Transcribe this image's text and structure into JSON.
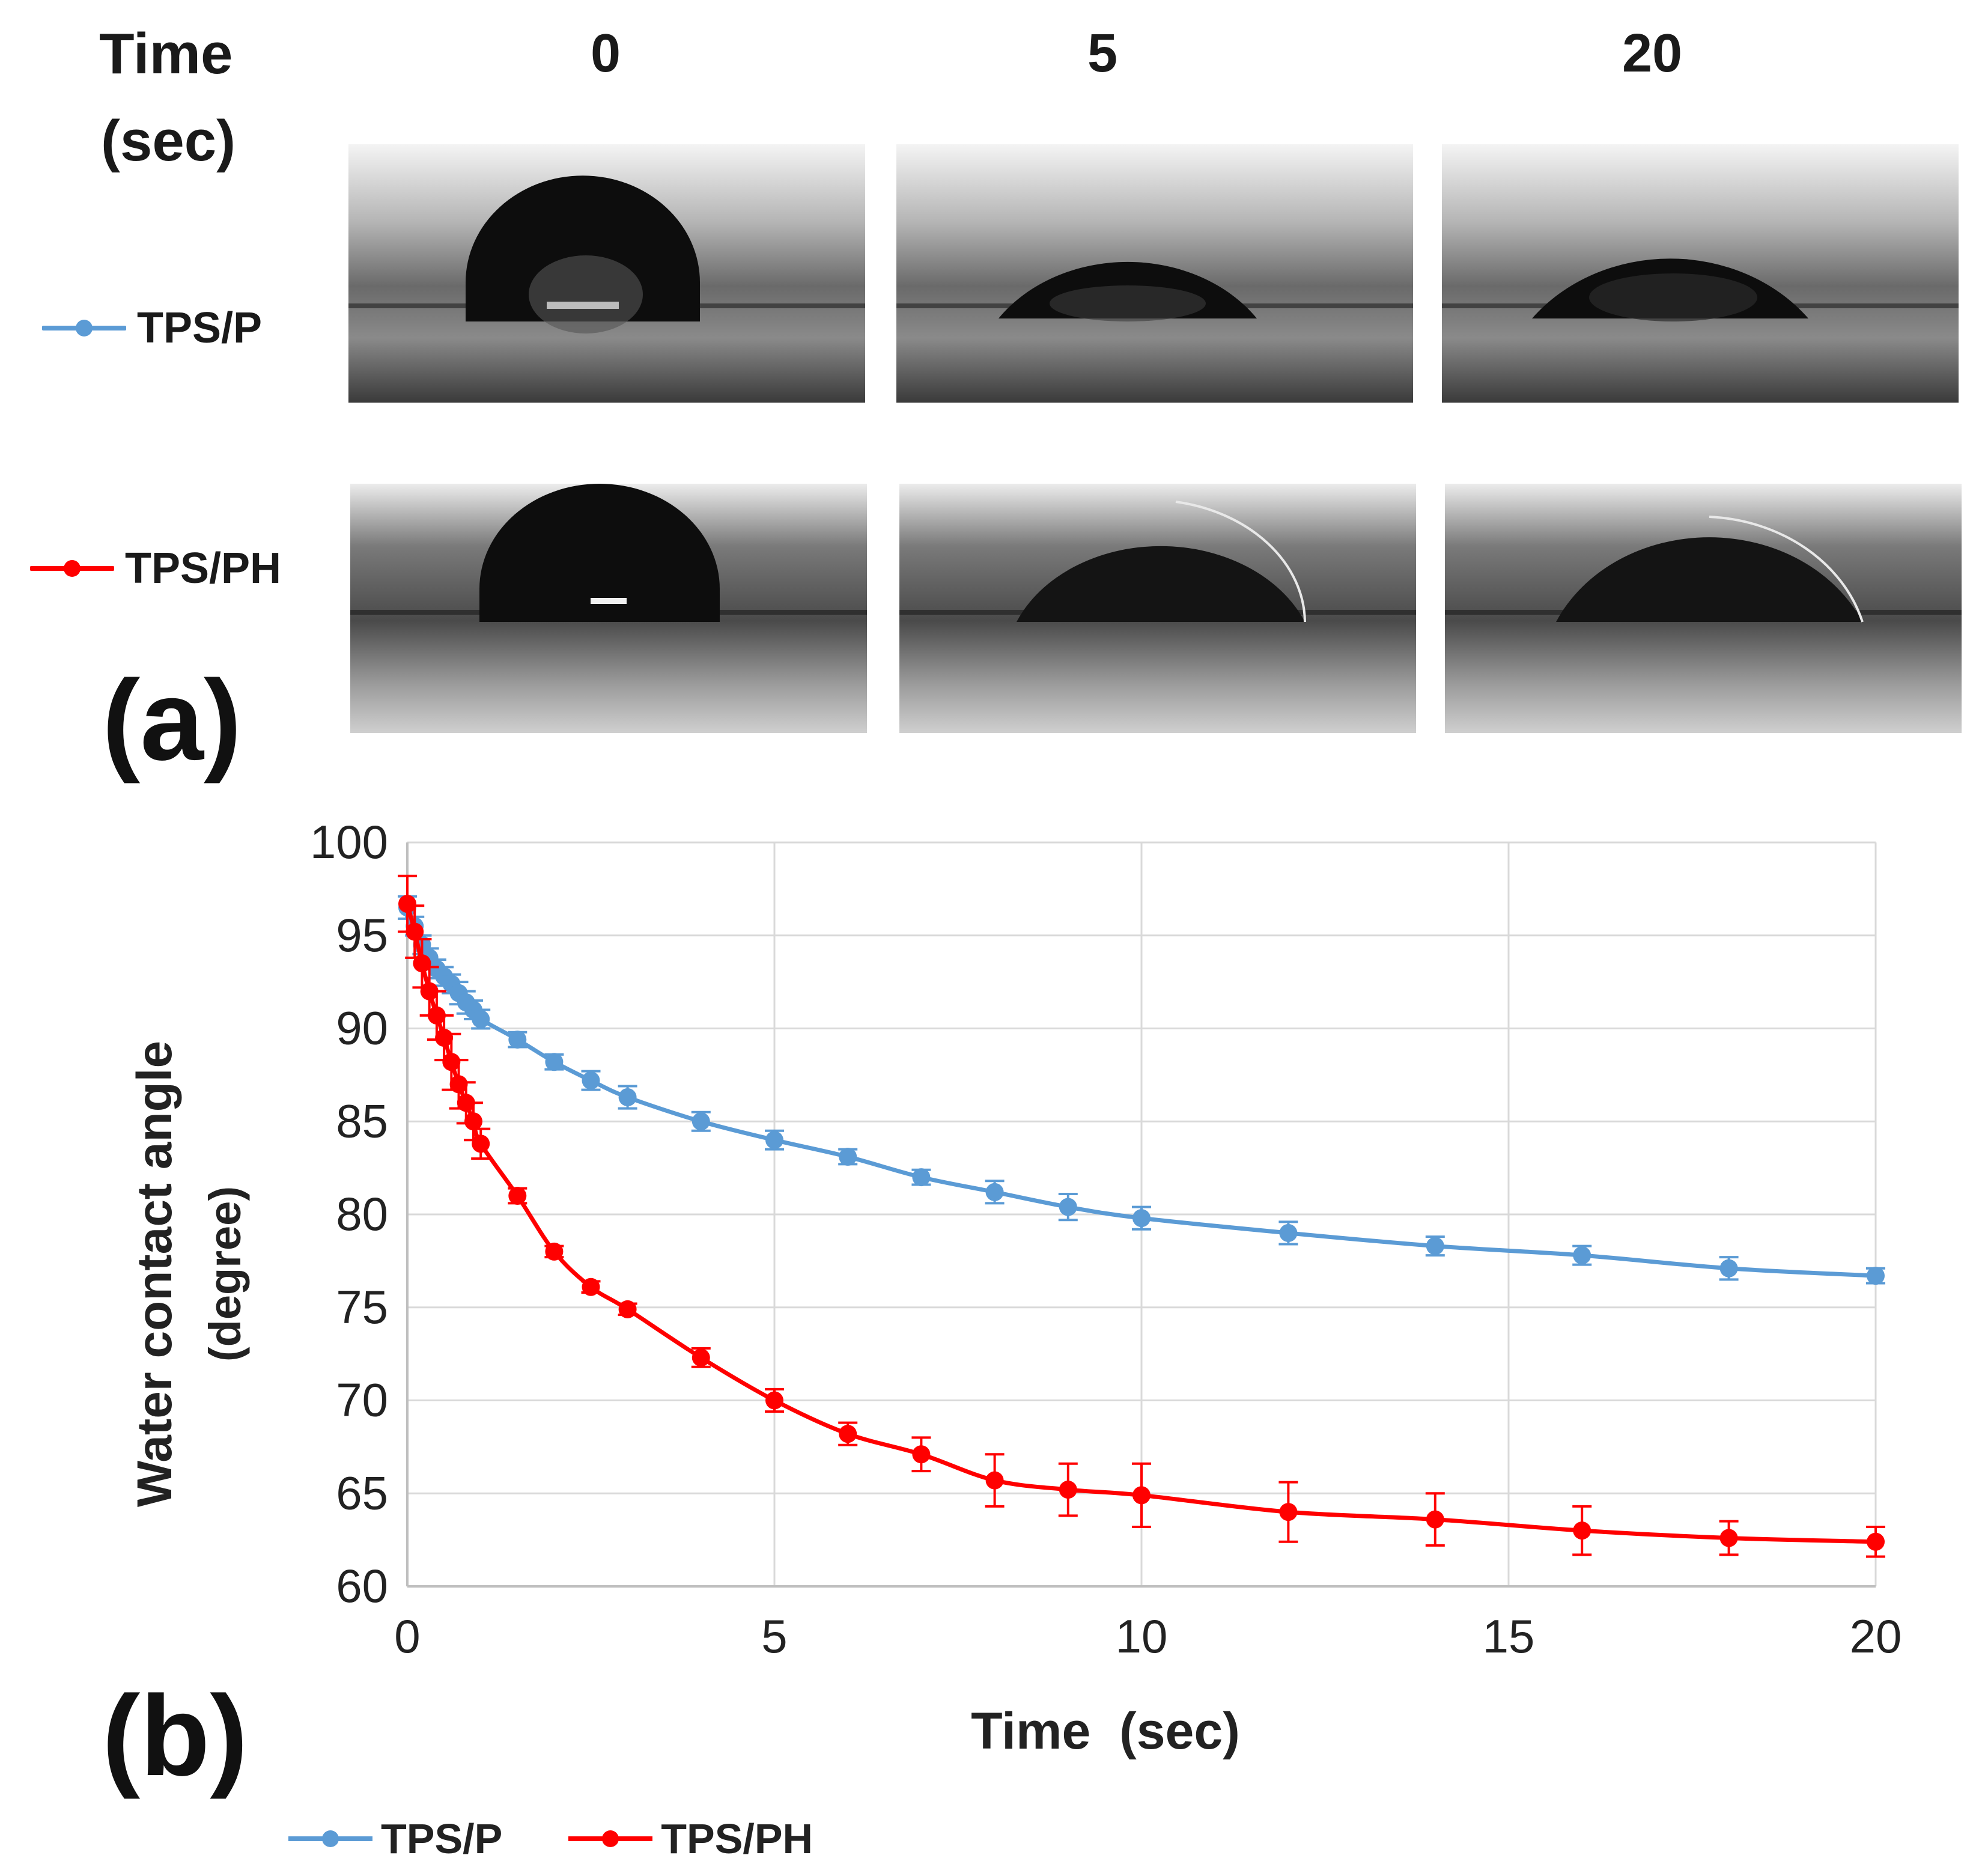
{
  "panel_a": {
    "letter": "(a)",
    "time_label_line1": "Time",
    "time_label_line2": "(sec)",
    "times": [
      "0",
      "5",
      "20"
    ],
    "rows": [
      {
        "name": "TPS/P",
        "color": "#5B9BD5"
      },
      {
        "name": "TPS/PH",
        "color": "#FF0000"
      }
    ]
  },
  "panel_b": {
    "letter": "(b)"
  },
  "legend": [
    {
      "name": "TPS/P",
      "color": "#5B9BD5"
    },
    {
      "name": "TPS/PH",
      "color": "#FF0000"
    }
  ],
  "chart_data": {
    "type": "line",
    "title": "",
    "xlabel": "Time  (sec)",
    "ylabel": "Water contact angle",
    "ylabel_unit": "(degree)",
    "xlim": [
      0,
      20
    ],
    "ylim": [
      60,
      100
    ],
    "xticks": [
      "0",
      "5",
      "10",
      "15",
      "20"
    ],
    "yticks": [
      "60",
      "65",
      "70",
      "75",
      "80",
      "85",
      "90",
      "95",
      "100"
    ],
    "grid": true,
    "legend_position": "bottom",
    "series": [
      {
        "name": "TPS/P",
        "color": "#5B9BD5",
        "x": [
          0,
          0.1,
          0.2,
          0.3,
          0.4,
          0.5,
          0.6,
          0.7,
          0.8,
          0.9,
          1,
          1.5,
          2,
          2.5,
          3,
          4,
          5,
          6,
          7,
          8,
          9,
          10,
          12,
          14,
          16,
          18,
          20
        ],
        "y": [
          96.5,
          95.5,
          94.5,
          93.8,
          93.2,
          92.8,
          92.4,
          91.9,
          91.4,
          91.0,
          90.5,
          89.4,
          88.2,
          87.2,
          86.3,
          85.0,
          84.0,
          83.1,
          82.0,
          81.2,
          80.4,
          79.8,
          79.0,
          78.3,
          77.8,
          77.1,
          76.7
        ],
        "err": [
          0.6,
          0.5,
          0.5,
          0.5,
          0.5,
          0.5,
          0.5,
          0.6,
          0.6,
          0.5,
          0.5,
          0.4,
          0.4,
          0.5,
          0.6,
          0.5,
          0.5,
          0.4,
          0.4,
          0.6,
          0.7,
          0.6,
          0.6,
          0.5,
          0.5,
          0.6,
          0.4
        ]
      },
      {
        "name": "TPS/PH",
        "color": "#FF0000",
        "x": [
          0,
          0.1,
          0.2,
          0.3,
          0.4,
          0.5,
          0.6,
          0.7,
          0.8,
          0.9,
          1,
          1.5,
          2,
          2.5,
          3,
          4,
          5,
          6,
          7,
          8,
          9,
          10,
          12,
          14,
          16,
          18,
          20
        ],
        "y": [
          96.7,
          95.2,
          93.5,
          92.0,
          90.7,
          89.5,
          88.2,
          87.0,
          86.0,
          85.0,
          83.8,
          81.0,
          78.0,
          76.1,
          74.9,
          72.3,
          70.0,
          68.2,
          67.1,
          65.7,
          65.2,
          64.9,
          64.0,
          63.6,
          63.0,
          62.6,
          62.4
        ],
        "err": [
          1.5,
          1.4,
          1.3,
          1.3,
          1.3,
          1.2,
          1.5,
          1.3,
          1.1,
          1.0,
          0.8,
          0.4,
          0.3,
          0.3,
          0.3,
          0.5,
          0.6,
          0.6,
          0.9,
          1.4,
          1.4,
          1.7,
          1.6,
          1.4,
          1.3,
          0.9,
          0.8
        ]
      }
    ]
  }
}
